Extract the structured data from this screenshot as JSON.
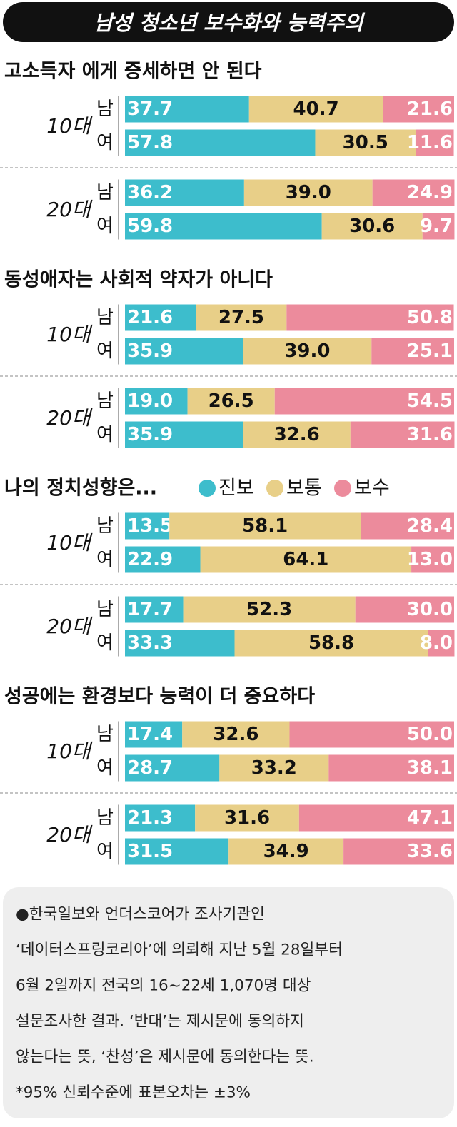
{
  "title": "남성 청소년 보수화와 능력주의",
  "chart_data": [
    {
      "type": "stacked-bar",
      "title": "고소득자 에게 증세하면 안 된다",
      "groups": [
        "10대",
        "20대"
      ],
      "categories": [
        "남",
        "여",
        "남",
        "여"
      ],
      "xlim": [
        0,
        100
      ],
      "series": [
        {
          "color": "#3dbdcc",
          "values": [
            37.7,
            57.8,
            36.2,
            59.8
          ],
          "value_labels": [
            "37.7",
            "57.8",
            "36.2",
            "59.8"
          ]
        },
        {
          "color": "#e8cf88",
          "values": [
            40.7,
            30.5,
            39.0,
            30.6
          ],
          "value_labels": [
            "40.7",
            "30.5",
            "39.0",
            "30.6"
          ]
        },
        {
          "color": "#ec8b9c",
          "values": [
            21.6,
            11.6,
            24.9,
            9.7
          ],
          "value_labels": [
            "21.6",
            "11.6",
            "24.9",
            "9.7"
          ]
        }
      ]
    },
    {
      "type": "stacked-bar",
      "title": "동성애자는 사회적 약자가 아니다",
      "groups": [
        "10대",
        "20대"
      ],
      "categories": [
        "남",
        "여",
        "남",
        "여"
      ],
      "xlim": [
        0,
        100
      ],
      "series": [
        {
          "color": "#3dbdcc",
          "values": [
            21.6,
            35.9,
            19.0,
            35.9
          ],
          "value_labels": [
            "21.6",
            "35.9",
            "19.0",
            "35.9"
          ]
        },
        {
          "color": "#e8cf88",
          "values": [
            27.5,
            39.0,
            26.5,
            32.6
          ],
          "value_labels": [
            "27.5",
            "39.0",
            "26.5",
            "32.6"
          ]
        },
        {
          "color": "#ec8b9c",
          "values": [
            50.8,
            25.1,
            54.5,
            31.6
          ],
          "value_labels": [
            "50.8",
            "25.1",
            "54.5",
            "31.6"
          ]
        }
      ]
    },
    {
      "type": "stacked-bar",
      "title": "나의 정치성향은...",
      "groups": [
        "10대",
        "20대"
      ],
      "categories": [
        "남",
        "여",
        "남",
        "여"
      ],
      "xlim": [
        0,
        100
      ],
      "series": [
        {
          "name": "진보",
          "color": "#3dbdcc",
          "values": [
            13.5,
            22.9,
            17.7,
            33.3
          ],
          "value_labels": [
            "13.5",
            "22.9",
            "17.7",
            "33.3"
          ]
        },
        {
          "name": "보통",
          "color": "#e8cf88",
          "values": [
            58.1,
            64.1,
            52.3,
            58.8
          ],
          "value_labels": [
            "58.1",
            "64.1",
            "52.3",
            "58.8"
          ]
        },
        {
          "name": "보수",
          "color": "#ec8b9c",
          "values": [
            28.4,
            13.0,
            30.0,
            8.0
          ],
          "value_labels": [
            "28.4",
            "13.0",
            "30.0",
            "8.0"
          ]
        }
      ]
    },
    {
      "type": "stacked-bar",
      "title": "성공에는 환경보다 능력이 더 중요하다",
      "groups": [
        "10대",
        "20대"
      ],
      "categories": [
        "남",
        "여",
        "남",
        "여"
      ],
      "xlim": [
        0,
        100
      ],
      "series": [
        {
          "color": "#3dbdcc",
          "values": [
            17.4,
            28.7,
            21.3,
            31.5
          ],
          "value_labels": [
            "17.4",
            "28.7",
            "21.3",
            "31.5"
          ]
        },
        {
          "color": "#e8cf88",
          "values": [
            32.6,
            33.2,
            31.6,
            34.9
          ],
          "value_labels": [
            "32.6",
            "33.2",
            "31.6",
            "34.9"
          ]
        },
        {
          "color": "#ec8b9c",
          "values": [
            50.0,
            38.1,
            47.1,
            33.6
          ],
          "value_labels": [
            "50.0",
            "38.1",
            "47.1",
            "33.6"
          ]
        }
      ]
    }
  ],
  "note": [
    "●한국일보와 언더스코어가 조사기관인",
    "‘데이터스프링코리아’에 의뢰해 지난 5월 28일부터",
    "6월 2일까지 전국의 16~22세 1,070명 대상",
    "설문조사한 결과. ‘반대’는 제시문에 동의하지",
    "않는다는 뜻, ‘찬성’은 제시문에 동의한다는 뜻.",
    "*95% 신뢰수준에 표본오차는 ±3%"
  ]
}
